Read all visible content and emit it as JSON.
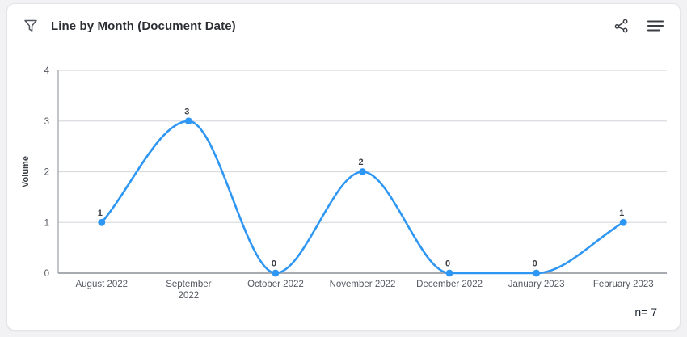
{
  "header": {
    "title": "Line by Month (Document Date)",
    "icons": {
      "filter": "funnel-outline",
      "share": "share-nodes",
      "menu": "hamburger-menu"
    }
  },
  "footer": {
    "count_label": "n= 7"
  },
  "colors": {
    "line": "#2e96f3",
    "marker": "#2e96f3",
    "grid": "#d9dbdf",
    "axis": "#a8acb3",
    "tick_text": "#53575f",
    "data_label_text": "#3a3e44",
    "title_text": "#2b2e33"
  },
  "chart_data": {
    "type": "line",
    "title": "Line by Month (Document Date)",
    "categories": [
      "August 2022",
      "September 2022",
      "October 2022",
      "November 2022",
      "December 2022",
      "January 2023",
      "February 2023"
    ],
    "values": [
      1,
      3,
      0,
      2,
      0,
      0,
      1
    ],
    "xlabel": "",
    "ylabel": "Volume",
    "ylim": [
      0,
      4
    ],
    "yticks": [
      0,
      1,
      2,
      3,
      4
    ],
    "grid": true,
    "legend_position": "none",
    "smooth": true,
    "data_labels": [
      1,
      3,
      0,
      2,
      0,
      0,
      1
    ],
    "n": 7
  }
}
